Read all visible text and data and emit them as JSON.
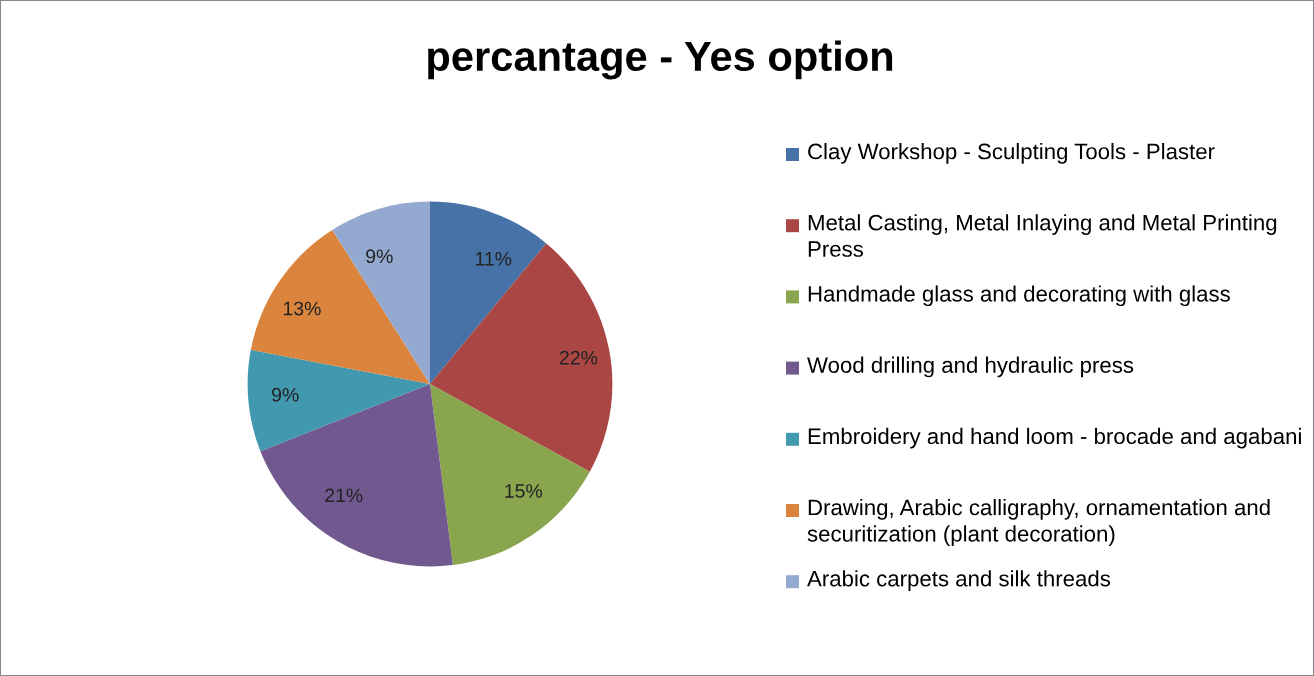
{
  "chart_data": {
    "type": "pie",
    "title": "percantage - Yes option",
    "categories": [
      "Clay Workshop - Sculpting Tools - Plaster",
      "Metal Casting, Metal Inlaying and Metal Printing Press",
      "Handmade glass and decorating with glass",
      "Wood drilling and hydraulic press",
      "Embroidery and hand loom - brocade and agabani",
      "Drawing, Arabic calligraphy, ornamentation and securitization (plant decoration)",
      "Arabic carpets and silk threads"
    ],
    "values": [
      11,
      22,
      15,
      21,
      9,
      13,
      9
    ],
    "value_labels": [
      "11%",
      "22%",
      "15%",
      "21%",
      "9%",
      "13%",
      "9%"
    ],
    "colors": [
      "#4672a8",
      "#aa4744",
      "#89a54e",
      "#71588f",
      "#4298af",
      "#db843d",
      "#93a9cf"
    ],
    "legend": "right"
  }
}
